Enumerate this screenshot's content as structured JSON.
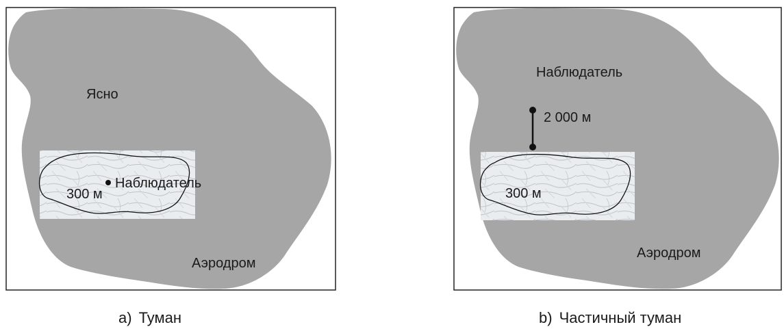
{
  "panels": [
    {
      "id": "a",
      "caption_letter": "a)",
      "caption_text": "Туман",
      "sky_label": "Ясно",
      "fog_distance_label": "300 м",
      "observer_label": "Наблюдатель",
      "aerodrome_label": "Аэродром"
    },
    {
      "id": "b",
      "caption_letter": "b)",
      "caption_text": "Частичный туман",
      "observer_label": "Наблюдатель",
      "observer_distance_label": "2 000 м",
      "fog_distance_label": "300 м",
      "aerodrome_label": "Аэродром"
    }
  ],
  "colors": {
    "aerodrome_fill": "#a6a6a6",
    "frame_stroke": "#222222",
    "fog_base": "#eaedf0",
    "fog_streak": "#b9bfc5",
    "marker": "#111111"
  }
}
